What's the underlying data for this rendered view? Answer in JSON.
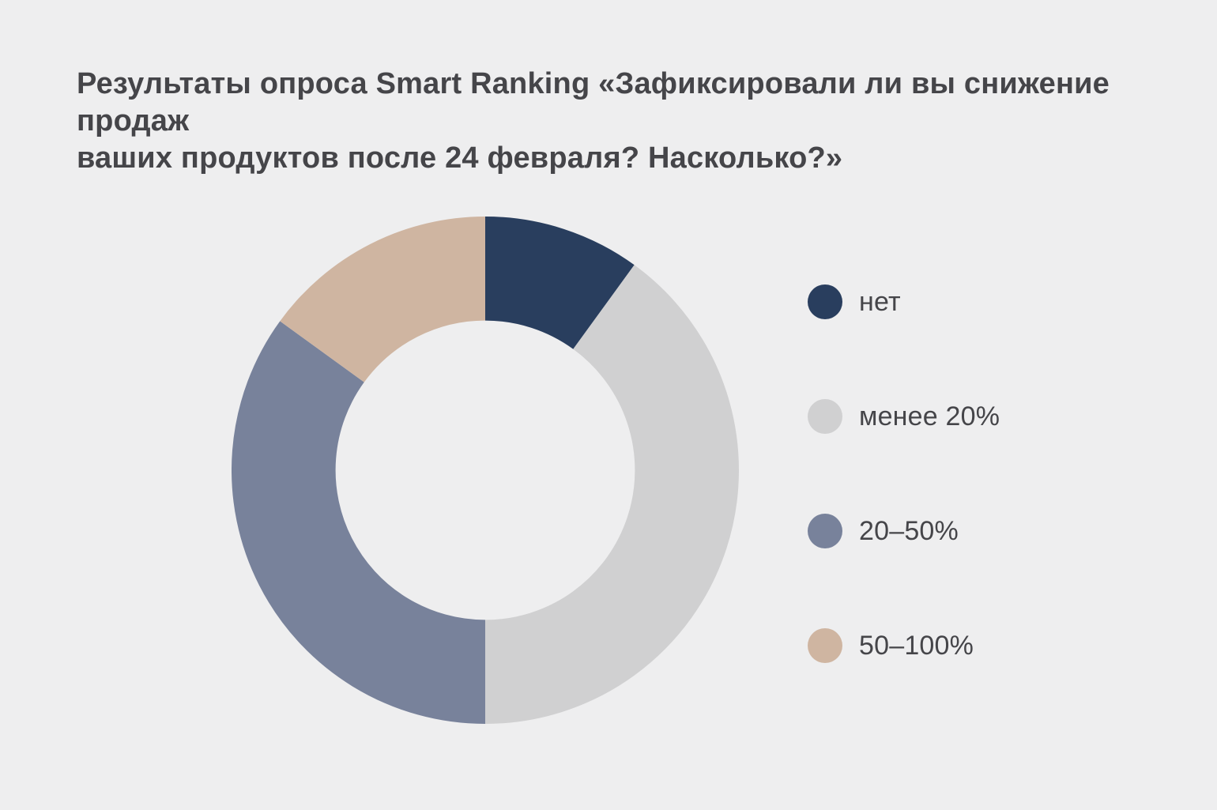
{
  "theme": {
    "background": "#eeeeef",
    "text_color": "#454549"
  },
  "title": {
    "display": "Результаты опроса Smart Ranking «Зафиксировали ли вы снижение продаж\nваших продуктов после 24 февраля? Насколько?»"
  },
  "chart_data": {
    "type": "pie",
    "subtype": "donut",
    "title": "Результаты опроса Smart Ranking «Зафиксировали ли вы снижение продаж ваших продуктов после 24 февраля? Насколько?»",
    "unit": "percent",
    "start_angle_deg": 0,
    "direction": "clockwise",
    "donut_hole_ratio": 0.795,
    "legend_position": "right",
    "data_labels": false,
    "segments": [
      {
        "label": "нет",
        "value": 10,
        "color": "#293e5e"
      },
      {
        "label": "менее 20%",
        "value": 40,
        "color": "#d0d0d1"
      },
      {
        "label": "20–50%",
        "value": 35,
        "color": "#78829b"
      },
      {
        "label": "50–100%",
        "value": 15,
        "color": "#cfb5a1"
      }
    ]
  }
}
